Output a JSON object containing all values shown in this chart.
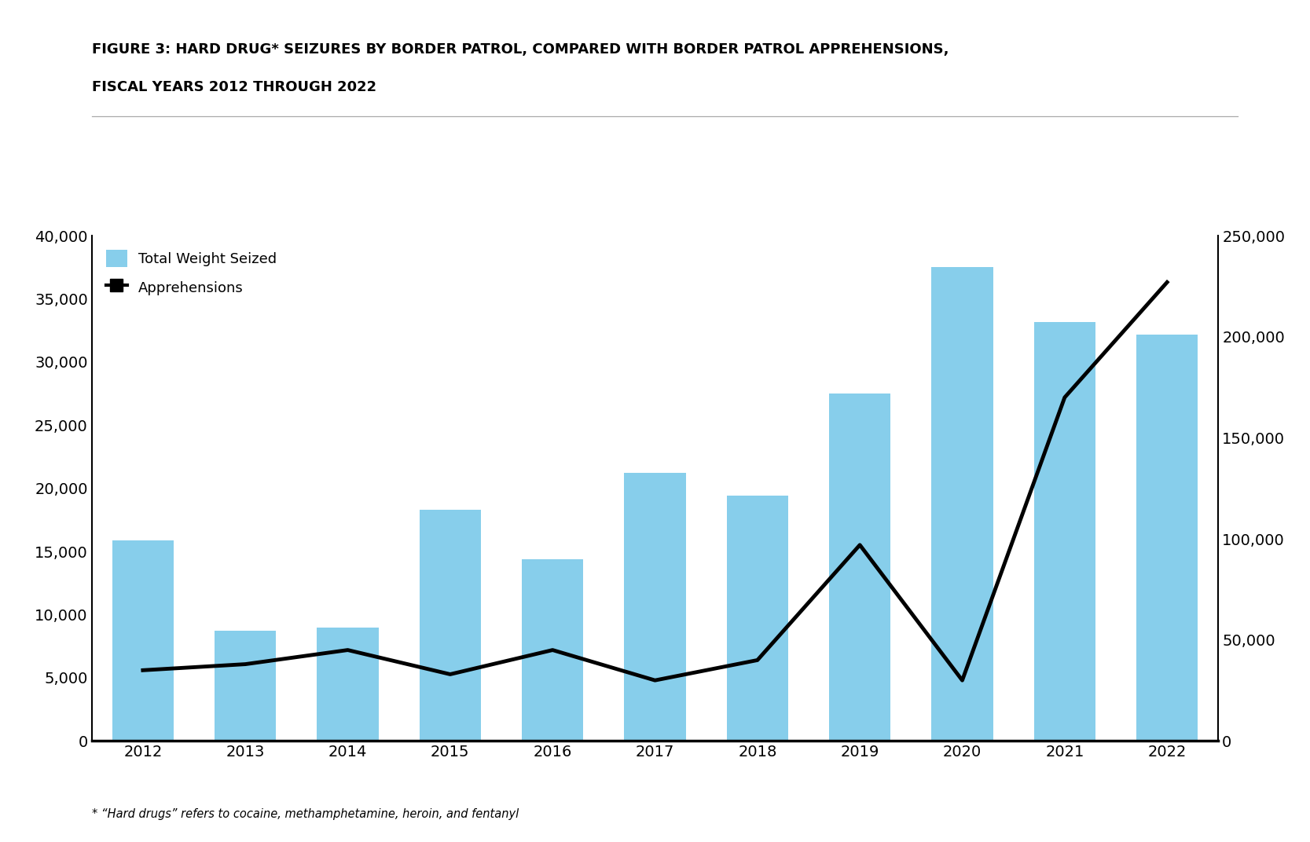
{
  "years": [
    2012,
    2013,
    2014,
    2015,
    2016,
    2017,
    2018,
    2019,
    2020,
    2021,
    2022
  ],
  "weight_seized": [
    15900,
    8700,
    9000,
    18300,
    14400,
    21200,
    19400,
    27500,
    37500,
    33200,
    32200
  ],
  "apprehensions": [
    35000,
    38000,
    45000,
    33000,
    45000,
    30000,
    40000,
    97000,
    30000,
    170000,
    227000
  ],
  "bar_color": "#87CEEB",
  "line_color": "#000000",
  "bg_color": "#ffffff",
  "title_line1": "FIGURE 3: HARD DRUG* SEIZURES BY BORDER PATROL, COMPARED WITH BORDER PATROL APPREHENSIONS,",
  "title_line2": "FISCAL YEARS 2012 THROUGH 2022",
  "legend_weight": "Total Weight Seized",
  "legend_apprehensions": "Apprehensions",
  "footnote": "* “Hard drugs” refers to cocaine, methamphetamine, heroin, and fentanyl",
  "ylim_left": [
    0,
    40000
  ],
  "ylim_right": [
    0,
    250000
  ],
  "yticks_left": [
    0,
    5000,
    10000,
    15000,
    20000,
    25000,
    30000,
    35000,
    40000
  ],
  "yticks_right": [
    0,
    50000,
    100000,
    150000,
    200000,
    250000
  ]
}
